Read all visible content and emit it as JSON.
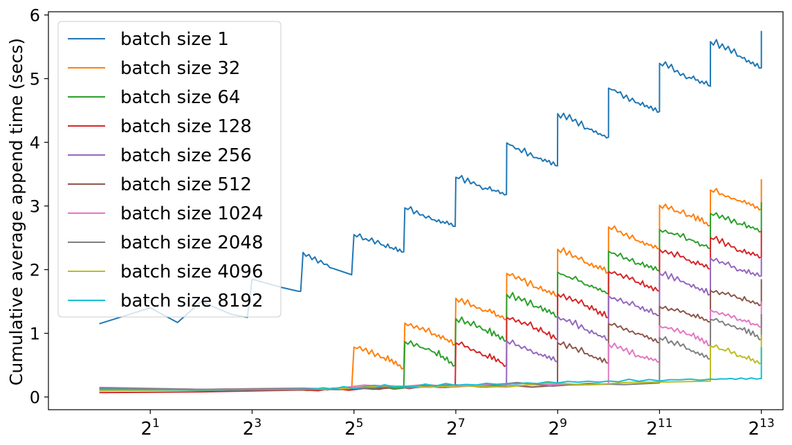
{
  "chart_data": {
    "type": "line",
    "xscale": "log2",
    "xlim": [
      0.5,
      11000
    ],
    "ylim": [
      -0.2,
      6.05
    ],
    "ylabel": "Cumulative average append time (secs)",
    "xlabel": "",
    "x_ticks": [
      {
        "value": 2,
        "base": "2",
        "exp": "1"
      },
      {
        "value": 8,
        "base": "2",
        "exp": "3"
      },
      {
        "value": 32,
        "base": "2",
        "exp": "5"
      },
      {
        "value": 128,
        "base": "2",
        "exp": "7"
      },
      {
        "value": 512,
        "base": "2",
        "exp": "9"
      },
      {
        "value": 2048,
        "base": "2",
        "exp": "11"
      },
      {
        "value": 8192,
        "base": "2",
        "exp": "13"
      }
    ],
    "y_ticks": [
      {
        "value": 0,
        "label": "0"
      },
      {
        "value": 1,
        "label": "1"
      },
      {
        "value": 2,
        "label": "2"
      },
      {
        "value": 3,
        "label": "3"
      },
      {
        "value": 4,
        "label": "4"
      },
      {
        "value": 5,
        "label": "5"
      },
      {
        "value": 6,
        "label": "6"
      }
    ],
    "grid": false,
    "legend_position": "top-left",
    "series": [
      {
        "name": "batch size 1",
        "color": "#1f77b4",
        "batch": 1,
        "x": [
          1,
          2,
          2.9,
          4,
          6,
          7.5,
          8,
          12,
          15,
          15.5,
          16,
          24,
          31,
          32,
          48,
          63,
          64,
          96,
          127,
          128,
          192,
          255,
          256,
          384,
          511,
          512,
          768,
          1023,
          1024,
          1536,
          2047,
          2048,
          3072,
          4095,
          4096,
          6144,
          8191,
          8192
        ],
        "y": [
          1.15,
          1.4,
          1.17,
          1.5,
          1.3,
          1.25,
          1.85,
          1.72,
          1.66,
          1.66,
          2.27,
          2.02,
          1.92,
          2.55,
          2.38,
          2.28,
          2.97,
          2.78,
          2.68,
          3.45,
          3.28,
          3.18,
          3.99,
          3.76,
          3.63,
          4.45,
          4.22,
          4.08,
          4.85,
          4.62,
          4.48,
          5.24,
          5.02,
          4.88,
          5.58,
          5.35,
          5.17,
          5.75
        ]
      },
      {
        "name": "batch size 32",
        "color": "#ff7f0e",
        "batch": 32,
        "x": [
          1,
          2,
          4,
          8,
          16,
          31,
          32,
          48,
          63,
          64,
          96,
          127,
          128,
          192,
          255,
          256,
          384,
          511,
          512,
          768,
          1023,
          1024,
          1536,
          2047,
          2048,
          3072,
          4095,
          4096,
          6144,
          8191,
          8192
        ],
        "y": [
          0.1,
          0.12,
          0.1,
          0.12,
          0.11,
          0.12,
          0.78,
          0.62,
          0.45,
          1.16,
          0.99,
          0.83,
          1.55,
          1.36,
          1.22,
          1.94,
          1.72,
          1.58,
          2.32,
          2.1,
          1.96,
          2.67,
          2.45,
          2.33,
          3.01,
          2.85,
          2.7,
          3.25,
          3.08,
          2.95,
          3.42
        ]
      },
      {
        "name": "batch size 64",
        "color": "#2ca02c",
        "batch": 64,
        "x": [
          1,
          4,
          16,
          63,
          64,
          96,
          127,
          128,
          192,
          255,
          256,
          384,
          511,
          512,
          768,
          1023,
          1024,
          1536,
          2047,
          2048,
          3072,
          4095,
          4096,
          6144,
          8191,
          8192
        ],
        "y": [
          0.12,
          0.11,
          0.12,
          0.14,
          0.87,
          0.7,
          0.5,
          1.23,
          1.05,
          0.88,
          1.61,
          1.42,
          1.26,
          1.96,
          1.76,
          1.62,
          2.29,
          2.1,
          1.98,
          2.63,
          2.48,
          2.33,
          2.88,
          2.72,
          2.6,
          3.06
        ]
      },
      {
        "name": "batch size 128",
        "color": "#d62728",
        "batch": 128,
        "x": [
          1,
          4,
          16,
          127,
          128,
          192,
          255,
          256,
          384,
          511,
          512,
          768,
          1023,
          1024,
          1536,
          2047,
          2048,
          3072,
          4095,
          4096,
          6144,
          8191,
          8192
        ],
        "y": [
          0.07,
          0.08,
          0.11,
          0.16,
          0.85,
          0.65,
          0.5,
          1.25,
          1.08,
          0.9,
          1.62,
          1.43,
          1.25,
          1.97,
          1.8,
          1.66,
          2.32,
          2.15,
          2.01,
          2.5,
          2.3,
          2.2,
          2.62
        ]
      },
      {
        "name": "batch size 256",
        "color": "#9467bd",
        "batch": 256,
        "x": [
          1,
          4,
          16,
          255,
          256,
          384,
          511,
          512,
          768,
          1023,
          1024,
          1536,
          2047,
          2048,
          3072,
          4095,
          4096,
          6144,
          8191,
          8192
        ],
        "y": [
          0.14,
          0.12,
          0.13,
          0.17,
          0.88,
          0.7,
          0.55,
          1.27,
          1.05,
          0.9,
          1.59,
          1.42,
          1.28,
          1.94,
          1.77,
          1.62,
          2.18,
          2.0,
          1.9,
          2.2
        ]
      },
      {
        "name": "batch size 512",
        "color": "#8c564b",
        "batch": 512,
        "x": [
          1,
          4,
          16,
          511,
          512,
          768,
          1023,
          1024,
          1536,
          2047,
          2048,
          3072,
          4095,
          4096,
          6144,
          8191,
          8192
        ],
        "y": [
          0.13,
          0.12,
          0.13,
          0.18,
          0.85,
          0.68,
          0.53,
          1.15,
          1.0,
          0.85,
          1.42,
          1.3,
          1.18,
          1.67,
          1.55,
          1.45,
          1.85
        ]
      },
      {
        "name": "batch size 1024",
        "color": "#e377c2",
        "batch": 1024,
        "x": [
          1,
          4,
          16,
          1023,
          1024,
          1536,
          2047,
          2048,
          3072,
          4095,
          4096,
          6144,
          8191,
          8192
        ],
        "y": [
          0.15,
          0.12,
          0.14,
          0.2,
          0.83,
          0.65,
          0.55,
          1.12,
          0.98,
          0.82,
          1.37,
          1.22,
          1.1,
          1.5
        ]
      },
      {
        "name": "batch size 2048",
        "color": "#7f7f7f",
        "batch": 2048,
        "x": [
          1,
          4,
          16,
          2047,
          2048,
          3072,
          4095,
          4096,
          6144,
          8191,
          8192
        ],
        "y": [
          0.14,
          0.12,
          0.13,
          0.22,
          0.93,
          0.75,
          0.6,
          1.22,
          1.08,
          0.9,
          1.3
        ]
      },
      {
        "name": "batch size 4096",
        "color": "#bcbd22",
        "batch": 4096,
        "x": [
          1,
          4,
          16,
          4095,
          4096,
          6144,
          8191,
          8192
        ],
        "y": [
          0.1,
          0.11,
          0.12,
          0.25,
          0.8,
          0.65,
          0.53,
          0.98
        ]
      },
      {
        "name": "batch size 8192",
        "color": "#17becf",
        "batch": 8192,
        "x": [
          1,
          4,
          16,
          64,
          256,
          1024,
          4096,
          8191,
          8192
        ],
        "y": [
          0.12,
          0.11,
          0.12,
          0.17,
          0.21,
          0.25,
          0.28,
          0.29,
          0.78
        ]
      }
    ]
  }
}
